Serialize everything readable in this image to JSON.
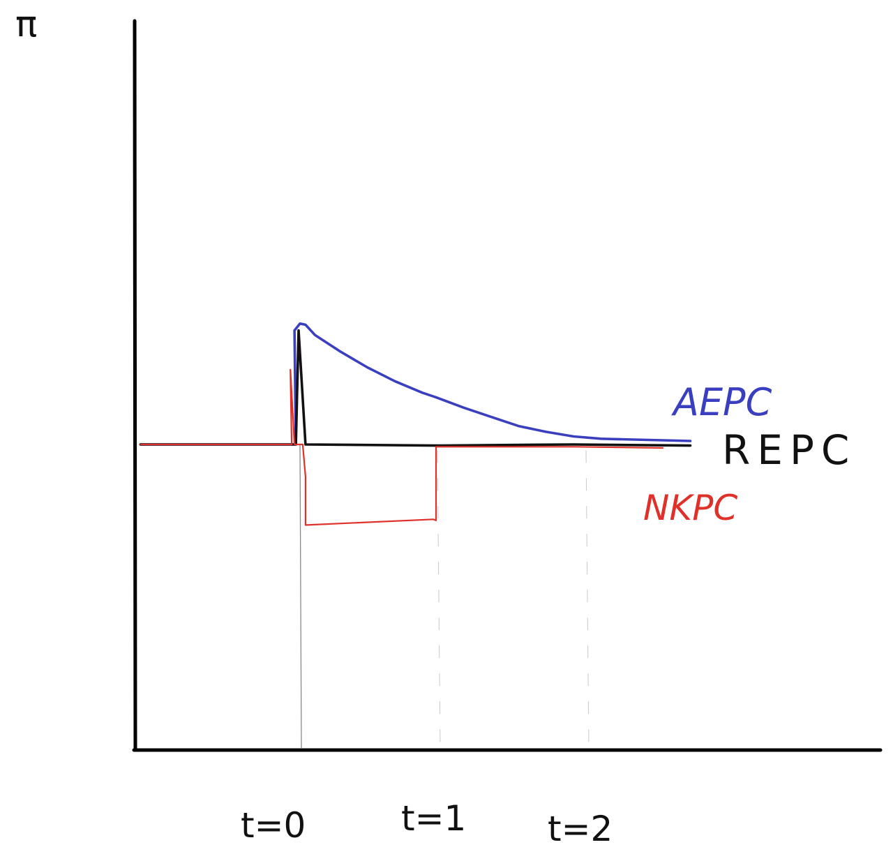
{
  "chart_data": {
    "type": "line",
    "ylabel": "π",
    "xlabel": "",
    "x_ticks": [
      "t=0",
      "t=1",
      "t=2"
    ],
    "baseline_y": 0,
    "series": [
      {
        "name": "AEPC",
        "color": "#3a3fbf",
        "points": [
          [
            -1.15,
            0
          ],
          [
            -0.02,
            0
          ],
          [
            -0.03,
            0.99
          ],
          [
            0.01,
            1.05
          ],
          [
            0.05,
            1.04
          ],
          [
            0.12,
            0.95
          ],
          [
            0.3,
            0.81
          ],
          [
            0.5,
            0.67
          ],
          [
            0.7,
            0.55
          ],
          [
            0.9,
            0.45
          ],
          [
            1.0,
            0.41
          ],
          [
            1.2,
            0.32
          ],
          [
            1.4,
            0.24
          ],
          [
            1.6,
            0.16
          ],
          [
            1.8,
            0.11
          ],
          [
            2.0,
            0.07
          ],
          [
            2.2,
            0.05
          ],
          [
            2.85,
            0.03
          ]
        ]
      },
      {
        "name": "REPC",
        "color": "#111111",
        "points": [
          [
            -1.15,
            0
          ],
          [
            -0.02,
            0
          ],
          [
            0.0,
            0.99
          ],
          [
            0.05,
            0.0
          ],
          [
            1.0,
            -0.01
          ],
          [
            2.0,
            0.0
          ],
          [
            2.85,
            -0.01
          ]
        ]
      },
      {
        "name": "NKPC",
        "color": "#e0302a",
        "points": [
          [
            -1.15,
            0
          ],
          [
            -0.05,
            0
          ],
          [
            -0.06,
            0.65
          ],
          [
            -0.03,
            0.0
          ],
          [
            0.03,
            0.0
          ],
          [
            0.05,
            -0.28
          ],
          [
            0.05,
            -0.7
          ],
          [
            0.98,
            -0.65
          ],
          [
            1.0,
            -0.66
          ],
          [
            1.0,
            -0.02
          ],
          [
            2.0,
            -0.02
          ],
          [
            2.65,
            -0.03
          ]
        ]
      }
    ],
    "xlim": [
      -1.2,
      4.2
    ],
    "ylim": [
      -2.5,
      3.5
    ]
  }
}
